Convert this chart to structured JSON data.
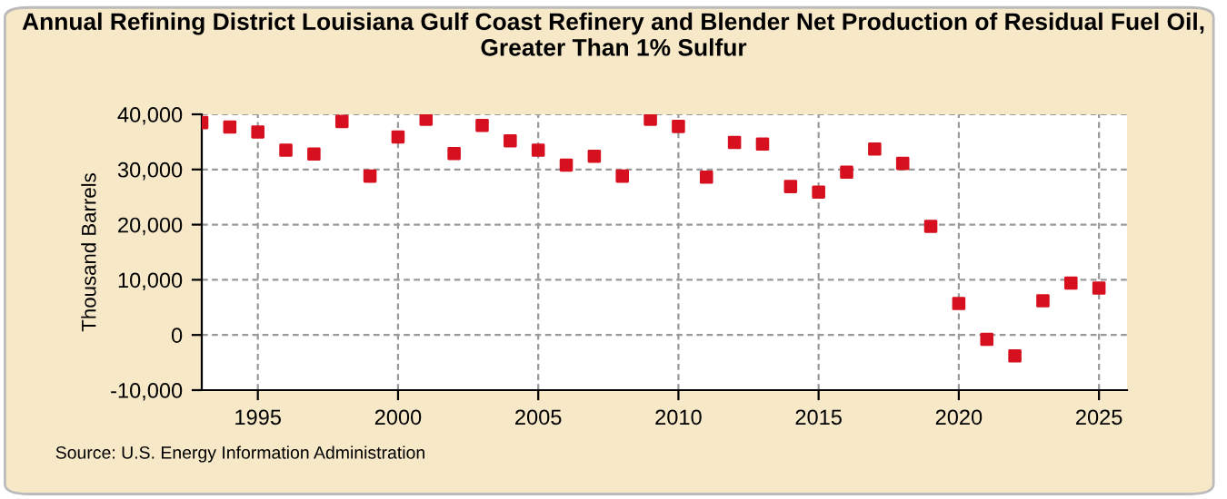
{
  "chart_data": {
    "type": "scatter",
    "title": "Annual Refining District Louisiana Gulf Coast Refinery and Blender Net Production of Residual Fuel Oil, Greater Than 1% Sulfur",
    "ylabel": "Thousand Barrels",
    "annotations": [
      "Source: U.S. Energy Information Administration"
    ],
    "x": [
      1993,
      1994,
      1995,
      1996,
      1997,
      1998,
      1999,
      2000,
      2001,
      2002,
      2003,
      2004,
      2005,
      2006,
      2007,
      2008,
      2009,
      2010,
      2011,
      2012,
      2013,
      2014,
      2015,
      2016,
      2017,
      2018,
      2019,
      2020,
      2021,
      2022,
      2023,
      2024,
      2025
    ],
    "series": [
      {
        "color": "#d7101f",
        "values": [
          38500,
          37700,
          36800,
          33500,
          32800,
          38700,
          28800,
          35900,
          39100,
          32900,
          38000,
          35200,
          33500,
          30800,
          32400,
          28800,
          39100,
          37800,
          28600,
          34900,
          34600,
          26900,
          25900,
          29500,
          33700,
          31100,
          19700,
          5700,
          -800,
          -3800,
          6200,
          9400,
          8500
        ]
      }
    ],
    "marker": "square",
    "xlim": [
      1993,
      2026
    ],
    "xticks": [
      1995,
      2000,
      2005,
      2010,
      2015,
      2020,
      2025
    ],
    "ylim": [
      -10000,
      40000
    ],
    "yticks": [
      {
        "value": -10000,
        "label": "-10,000"
      },
      {
        "value": 0,
        "label": "0"
      },
      {
        "value": 10000,
        "label": "10,000"
      },
      {
        "value": 20000,
        "label": "20,000"
      },
      {
        "value": 30000,
        "label": "30,000"
      },
      {
        "value": 40000,
        "label": "40,000"
      }
    ],
    "grid": true
  }
}
